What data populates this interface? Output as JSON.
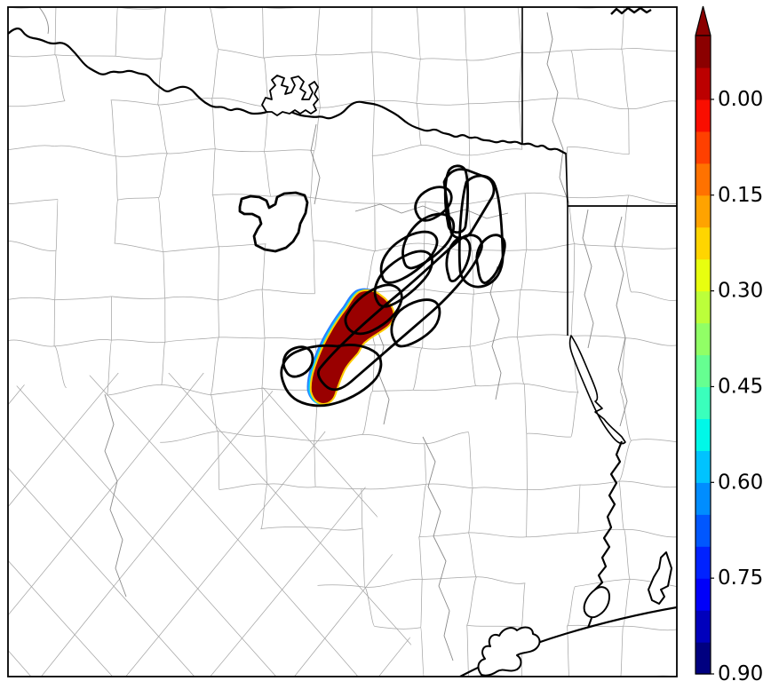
{
  "chart_data": {
    "type": "map",
    "title": "",
    "legend_position": "right",
    "colorbar": {
      "orientation": "vertical",
      "range": [
        0.0,
        1.0
      ],
      "tick_labels": [
        "0.90",
        "0.75",
        "0.60",
        "0.45",
        "0.30",
        "0.15",
        "0.00"
      ],
      "tick_values": [
        0.9,
        0.75,
        0.6,
        0.45,
        0.3,
        0.15,
        0.0
      ],
      "n_segments": 20,
      "extend": "max",
      "palette_bottom_to_top": [
        "#000080",
        "#0000BC",
        "#0000F9",
        "#0022FF",
        "#0057FF",
        "#008DFF",
        "#00C3FF",
        "#00F8E8",
        "#3AFFBC",
        "#66FF91",
        "#91FF66",
        "#BCFF3A",
        "#E8FF0F",
        "#FFD500",
        "#FFA300",
        "#FF7200",
        "#FF4000",
        "#F90E00",
        "#BC0000",
        "#8B0000"
      ],
      "over_color": "#8B0000"
    },
    "filled_region": {
      "fill_color": "#990000",
      "fringe_colors": [
        "#FFCC00",
        "#00D5FF",
        "#2A7FFF"
      ],
      "approx_value": "> 0.95"
    },
    "map_style": {
      "county_line_color": "#A6A6A6",
      "river_line_color": "#8A8A8A",
      "state_border_color": "#000000",
      "contour_outline_color": "#000000",
      "frame_color": "#000000",
      "background": "#FFFFFF"
    }
  }
}
